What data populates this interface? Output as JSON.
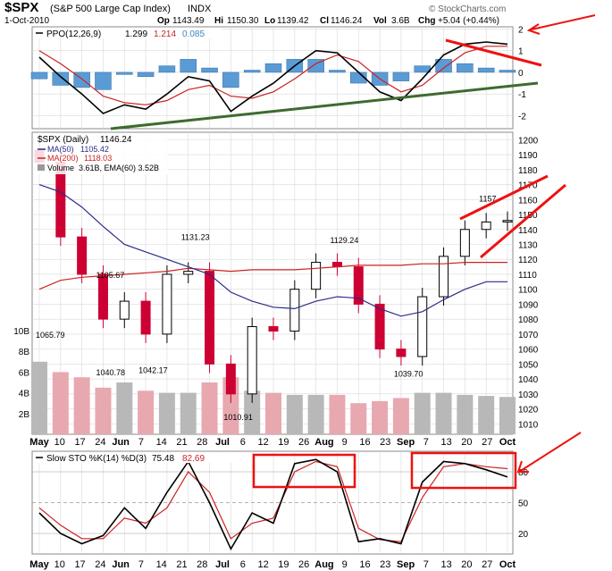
{
  "header": {
    "symbol": "$SPX",
    "name": "(S&P 500 Large Cap Index)",
    "exchange": "INDX",
    "date": "1-Oct-2010",
    "open_label": "Op",
    "open": "1143.49",
    "high_label": "Hi",
    "high": "1150.30",
    "low_label": "Lo",
    "low": "1139.42",
    "close_label": "Cl",
    "close": "1146.24",
    "volume_label": "Vol",
    "volume": "3.6B",
    "change_label": "Chg",
    "change": "+5.04 (+0.44%)",
    "credit": "© StockCharts.com"
  },
  "colors": {
    "up": "#000000",
    "down": "#cc0033",
    "ma50": "#2b2b8a",
    "ma200": "#cc2222",
    "volume_up": "#b8b8b8",
    "volume_down": "#e8a8b0",
    "hist": "#5b9bd5",
    "annotation": "#ee1111",
    "trendline": "#3e6b2e",
    "grid": "#d9d9d9"
  },
  "chart_data": [
    {
      "type": "line",
      "panel": "ppo",
      "label_main": "PPO(12,26,9)",
      "value_ppo": "1.299",
      "value_signal": "1.214",
      "value_hist": "0.085",
      "y_ticks": [
        "2",
        "1",
        "0",
        "-1",
        "-2"
      ],
      "ylim": [
        -2.6,
        2.1
      ],
      "x": [
        "May 3",
        "May 10",
        "May 17",
        "May 24",
        "Jun 1",
        "Jun 7",
        "Jun 14",
        "Jun 21",
        "Jun 28",
        "Jul 6",
        "Jul 12",
        "Jul 19",
        "Jul 26",
        "Aug 2",
        "Aug 9",
        "Aug 16",
        "Aug 23",
        "Aug 30",
        "Sep 7",
        "Sep 13",
        "Sep 20",
        "Sep 27",
        "Oct 1"
      ],
      "series": [
        {
          "name": "PPO",
          "values": [
            0.7,
            -0.2,
            -1.0,
            -1.9,
            -1.5,
            -1.7,
            -1.0,
            -0.2,
            -0.4,
            -1.8,
            -1.1,
            -0.5,
            0.3,
            1.0,
            0.9,
            0.0,
            -0.9,
            -1.3,
            -0.3,
            0.8,
            1.3,
            1.4,
            1.3
          ]
        },
        {
          "name": "Signal",
          "values": [
            1.0,
            0.4,
            -0.3,
            -1.1,
            -1.4,
            -1.5,
            -1.3,
            -0.8,
            -0.6,
            -1.1,
            -1.2,
            -0.9,
            -0.3,
            0.4,
            0.8,
            0.5,
            -0.3,
            -0.9,
            -0.6,
            0.2,
            0.9,
            1.2,
            1.2
          ]
        },
        {
          "name": "Histogram",
          "values": [
            -0.3,
            -0.6,
            -0.7,
            -0.8,
            -0.1,
            -0.2,
            0.3,
            0.6,
            0.2,
            -0.7,
            0.1,
            0.4,
            0.6,
            0.6,
            0.1,
            -0.5,
            -0.6,
            -0.4,
            0.3,
            0.6,
            0.4,
            0.2,
            0.1
          ]
        }
      ]
    },
    {
      "type": "candlestick",
      "panel": "price",
      "label_main": "$SPX (Daily)",
      "label_main_value": "1146.24",
      "ma50_label": "MA(50)",
      "ma50_value": "1105.42",
      "ma200_label": "MA(200)",
      "ma200_value": "1118.03",
      "volume_label": "Volume",
      "volume_value": "3.61B, EMA(60) 3.52B",
      "y_ticks": [
        "1200",
        "1190",
        "1180",
        "1170",
        "1160",
        "1150",
        "1140",
        "1130",
        "1120",
        "1110",
        "1100",
        "1090",
        "1080",
        "1070",
        "1060",
        "1050",
        "1040",
        "1030",
        "1020",
        "1010"
      ],
      "ylim": [
        1003,
        1205
      ],
      "volume_ticks": [
        "10B",
        "8B",
        "6B",
        "4B",
        "2B"
      ],
      "volume_ylim": [
        0,
        10
      ],
      "x": [
        "May 3",
        "May 10",
        "May 17",
        "May 24",
        "Jun 1",
        "Jun 7",
        "Jun 14",
        "Jun 21",
        "Jun 28",
        "Jul 6",
        "Jul 12",
        "Jul 19",
        "Jul 26",
        "Aug 2",
        "Aug 9",
        "Aug 16",
        "Aug 23",
        "Aug 30",
        "Sep 7",
        "Sep 13",
        "Sep 20",
        "Sep 27",
        "Oct 1"
      ],
      "close": [
        1185,
        1135,
        1110,
        1080,
        1092,
        1070,
        1110,
        1112,
        1050,
        1030,
        1075,
        1072,
        1100,
        1118,
        1115,
        1090,
        1060,
        1055,
        1095,
        1122,
        1140,
        1145,
        1146
      ],
      "ma50": [
        1170,
        1165,
        1155,
        1142,
        1130,
        1125,
        1120,
        1115,
        1110,
        1098,
        1092,
        1088,
        1087,
        1092,
        1095,
        1094,
        1087,
        1082,
        1085,
        1093,
        1100,
        1105,
        1105
      ],
      "ma200": [
        1100,
        1106,
        1108,
        1109,
        1110,
        1111,
        1112,
        1114,
        1113,
        1112,
        1113,
        1113,
        1113,
        1114,
        1115,
        1116,
        1116,
        1116,
        1117,
        1117,
        1118,
        1118,
        1118
      ],
      "volume": [
        7.0,
        6.0,
        5.5,
        4.5,
        5.0,
        4.2,
        4.0,
        4.0,
        5.0,
        5.5,
        4.2,
        4.0,
        3.8,
        3.8,
        3.8,
        3.0,
        3.2,
        3.5,
        4.0,
        4.0,
        3.8,
        3.7,
        3.6
      ],
      "annotations": [
        {
          "text": "1065.79",
          "x": "May 3",
          "y": 1065.79
        },
        {
          "text": "1105.67",
          "x": "May 24",
          "y": 1105.67
        },
        {
          "text": "1040.78",
          "x": "May 24",
          "y": 1040.78
        },
        {
          "text": "1042.17",
          "x": "Jun 7",
          "y": 1042.17
        },
        {
          "text": "1131.23",
          "x": "Jun 21",
          "y": 1131.23
        },
        {
          "text": "1010.91",
          "x": "Jul 6",
          "y": 1010.91
        },
        {
          "text": "1129.24",
          "x": "Aug 9",
          "y": 1129.24
        },
        {
          "text": "1039.70",
          "x": "Aug 30",
          "y": 1039.7
        },
        {
          "text": "1157",
          "x": "Sep 27",
          "y": 1157
        }
      ]
    },
    {
      "type": "line",
      "panel": "stochastic",
      "label_main": "Slow STO %K(14) %D(3)",
      "value_k": "75.48",
      "value_d": "82.69",
      "y_ticks": [
        "80",
        "50",
        "20"
      ],
      "ylim": [
        0,
        100
      ],
      "x": [
        "May 3",
        "May 10",
        "May 17",
        "May 24",
        "Jun 1",
        "Jun 7",
        "Jun 14",
        "Jun 21",
        "Jun 28",
        "Jul 6",
        "Jul 12",
        "Jul 19",
        "Jul 26",
        "Aug 2",
        "Aug 9",
        "Aug 16",
        "Aug 23",
        "Aug 30",
        "Sep 7",
        "Sep 13",
        "Sep 20",
        "Sep 27",
        "Oct 1"
      ],
      "series": [
        {
          "name": "%K",
          "values": [
            40,
            20,
            10,
            18,
            45,
            25,
            60,
            90,
            50,
            5,
            40,
            30,
            88,
            92,
            80,
            12,
            15,
            10,
            70,
            90,
            88,
            82,
            75
          ]
        },
        {
          "name": "%D",
          "values": [
            45,
            28,
            15,
            15,
            35,
            30,
            45,
            80,
            60,
            15,
            30,
            35,
            80,
            90,
            85,
            25,
            14,
            12,
            55,
            85,
            88,
            85,
            83
          ]
        }
      ]
    }
  ],
  "x_axis": [
    "May",
    "10",
    "17",
    "24",
    "Jun",
    "7",
    "14",
    "21",
    "28",
    "Jul",
    "6",
    "12",
    "19",
    "26",
    "Aug",
    "9",
    "16",
    "23",
    "Sep",
    "7",
    "13",
    "20",
    "27",
    "Oct"
  ]
}
